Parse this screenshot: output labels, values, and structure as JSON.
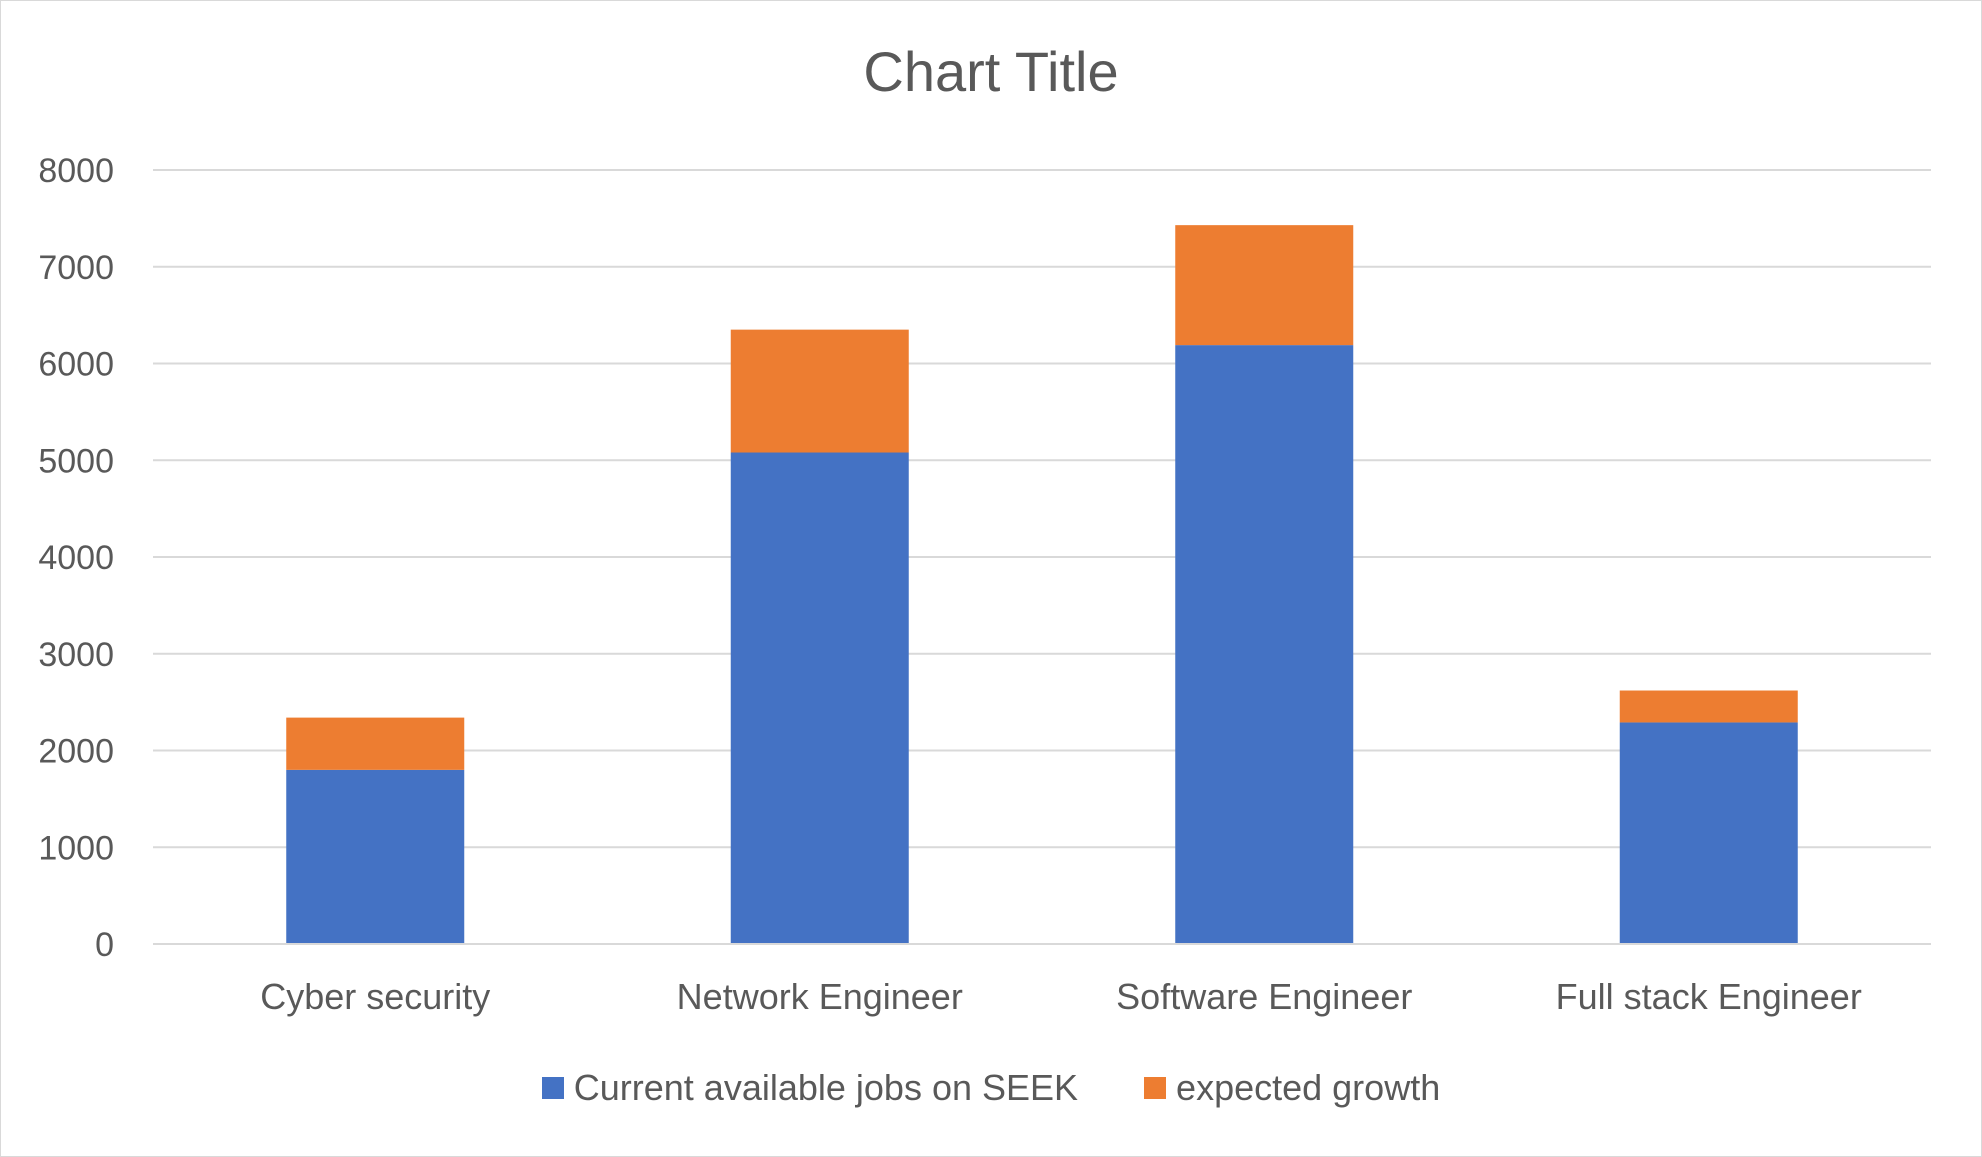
{
  "chart_data": {
    "type": "bar",
    "stacked": true,
    "title": "Chart Title",
    "xlabel": "",
    "ylabel": "",
    "categories": [
      "Cyber security",
      "Network Engineer",
      "Software Engineer",
      "Full stack Engineer"
    ],
    "series": [
      {
        "name": "Current available jobs on SEEK",
        "color": "#4472c4",
        "values": [
          1800,
          5080,
          6190,
          2290
        ]
      },
      {
        "name": "expected growth",
        "color": "#ed7d31",
        "values": [
          540,
          1270,
          1240,
          330
        ]
      }
    ],
    "ylim": [
      0,
      8000
    ],
    "yticks": [
      "0",
      "1000",
      "2000",
      "3000",
      "4000",
      "5000",
      "6000",
      "7000",
      "8000"
    ],
    "grid": true,
    "legend_position": "bottom"
  }
}
